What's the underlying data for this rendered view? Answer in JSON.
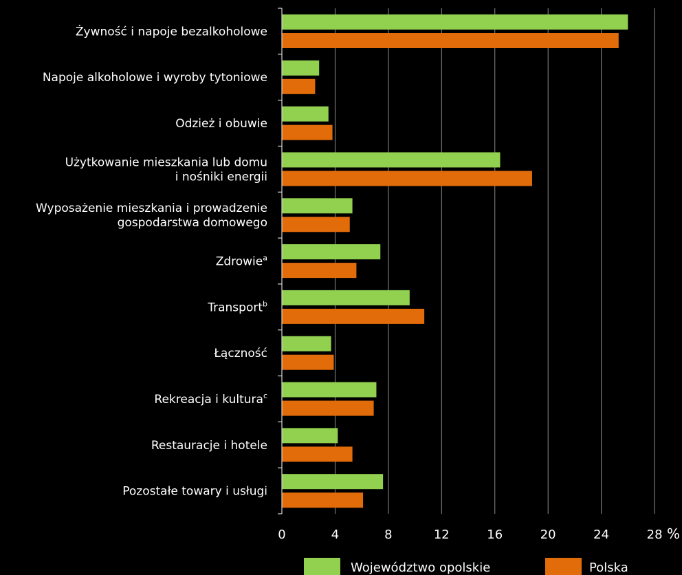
{
  "chart_data": {
    "type": "bar",
    "orientation": "horizontal",
    "categories": [
      {
        "lines": [
          "Żywność i napoje bezalkoholowe"
        ],
        "sup": ""
      },
      {
        "lines": [
          "Napoje alkoholowe i wyroby tytoniowe"
        ],
        "sup": ""
      },
      {
        "lines": [
          "Odzież i obuwie"
        ],
        "sup": ""
      },
      {
        "lines": [
          "Użytkowanie mieszkania lub domu",
          "i nośniki energii"
        ],
        "sup": ""
      },
      {
        "lines": [
          "Wyposażenie mieszkania i prowadzenie",
          "gospodarstwa domowego"
        ],
        "sup": ""
      },
      {
        "lines": [
          "Zdrowie"
        ],
        "sup": "a"
      },
      {
        "lines": [
          "Transport"
        ],
        "sup": "b"
      },
      {
        "lines": [
          "Łączność"
        ],
        "sup": ""
      },
      {
        "lines": [
          "Rekreacja i kultura"
        ],
        "sup": "c"
      },
      {
        "lines": [
          "Restauracje i hotele"
        ],
        "sup": ""
      },
      {
        "lines": [
          "Pozostałe towary i usługi"
        ],
        "sup": ""
      }
    ],
    "series": [
      {
        "name": "Województwo opolskie",
        "color": "#92d050",
        "values": [
          26.0,
          2.8,
          3.5,
          16.4,
          5.3,
          7.4,
          9.6,
          3.7,
          7.1,
          4.2,
          7.6
        ]
      },
      {
        "name": "Polska",
        "color": "#e36c0a",
        "values": [
          25.3,
          2.5,
          3.8,
          18.8,
          5.1,
          5.6,
          10.7,
          3.9,
          6.9,
          5.3,
          6.1
        ]
      }
    ],
    "xlim": [
      0,
      28
    ],
    "xticks": [
      0,
      4,
      8,
      12,
      16,
      20,
      24,
      28
    ],
    "x_unit": "%",
    "grid": true,
    "legend_position": "bottom",
    "title": "",
    "xlabel": "",
    "ylabel": ""
  }
}
